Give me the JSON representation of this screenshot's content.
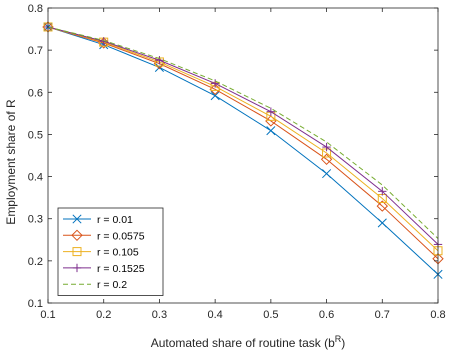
{
  "chart_data": {
    "type": "line",
    "title": "",
    "xlabel": "Automated share of routine task (b",
    "xlabel_superscript": "R",
    "xlabel_suffix": ")",
    "ylabel": "Employment share of R",
    "xlim": [
      0.1,
      0.8
    ],
    "ylim": [
      0.1,
      0.8
    ],
    "xticks": [
      0.1,
      0.2,
      0.3,
      0.4,
      0.5,
      0.6,
      0.7,
      0.8
    ],
    "yticks": [
      0.1,
      0.2,
      0.3,
      0.4,
      0.5,
      0.6,
      0.7,
      0.8
    ],
    "xtick_labels": [
      "0.1",
      "0.2",
      "0.3",
      "0.4",
      "0.5",
      "0.6",
      "0.7",
      "0.8"
    ],
    "ytick_labels": [
      "0.1",
      "0.2",
      "0.3",
      "0.4",
      "0.5",
      "0.6",
      "0.7",
      "0.8"
    ],
    "grid": false,
    "legend_position": "bottom-left",
    "x": [
      0.1,
      0.2,
      0.3,
      0.4,
      0.5,
      0.6,
      0.7,
      0.8
    ],
    "series": [
      {
        "name": "r = 0.01",
        "color": "#0072BD",
        "marker": "x",
        "dash": false,
        "values": [
          0.755,
          0.713,
          0.659,
          0.592,
          0.509,
          0.407,
          0.29,
          0.168
        ]
      },
      {
        "name": "r = 0.0575",
        "color": "#D95319",
        "marker": "diamond",
        "dash": false,
        "values": [
          0.755,
          0.717,
          0.668,
          0.607,
          0.532,
          0.441,
          0.33,
          0.205
        ]
      },
      {
        "name": "r = 0.105",
        "color": "#EDB120",
        "marker": "square",
        "dash": false,
        "values": [
          0.755,
          0.719,
          0.672,
          0.614,
          0.543,
          0.456,
          0.348,
          0.224
        ]
      },
      {
        "name": "r = 0.1525",
        "color": "#7E2F8E",
        "marker": "plus",
        "dash": false,
        "values": [
          0.755,
          0.721,
          0.676,
          0.621,
          0.554,
          0.47,
          0.365,
          0.239
        ]
      },
      {
        "name": "r = 0.2",
        "color": "#77AC30",
        "marker": "none",
        "dash": true,
        "values": [
          0.755,
          0.723,
          0.68,
          0.627,
          0.562,
          0.482,
          0.38,
          0.253
        ]
      }
    ]
  }
}
